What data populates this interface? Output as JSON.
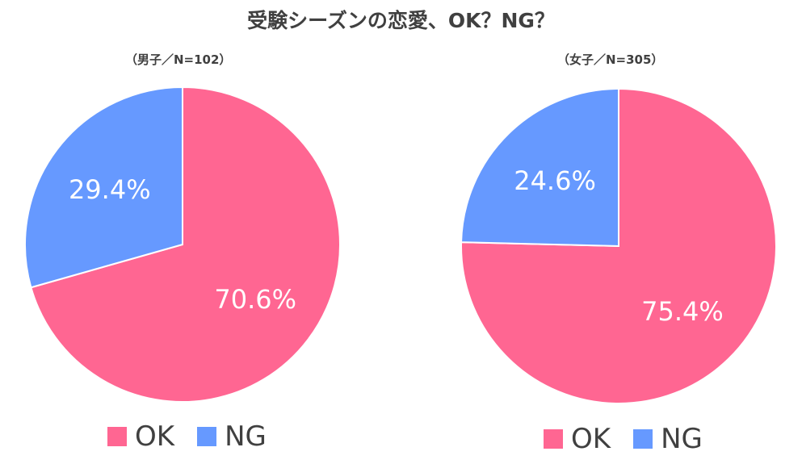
{
  "title": "受験シーズンの恋愛、OK？NG？",
  "colors": {
    "OK": "#FF6692",
    "NG": "#6699FF"
  },
  "legend": [
    "OK",
    "NG"
  ],
  "chart_data": [
    {
      "type": "pie",
      "subtitle": "（男子／N=102）",
      "categories": [
        "OK",
        "NG"
      ],
      "values": [
        70.6,
        29.4
      ],
      "labels": [
        "70.6%",
        "29.4%"
      ]
    },
    {
      "type": "pie",
      "subtitle": "（女子／N=305）",
      "categories": [
        "OK",
        "NG"
      ],
      "values": [
        75.4,
        24.6
      ],
      "labels": [
        "75.4%",
        "24.6%"
      ]
    }
  ]
}
